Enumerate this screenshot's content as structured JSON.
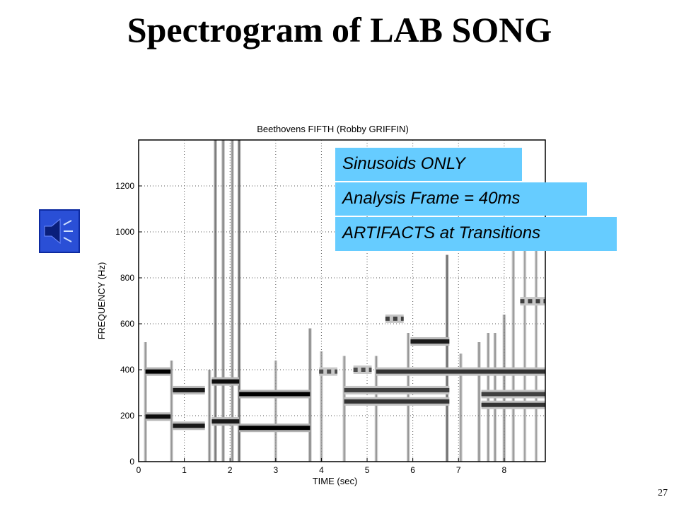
{
  "slide": {
    "title": "Spectrogram of LAB SONG",
    "page_number": "27"
  },
  "callouts": [
    "Sinusoids ONLY",
    "Analysis Frame = 40ms",
    "ARTIFACTS at Transitions"
  ],
  "speaker_icon": "speaker-icon",
  "chart_data": {
    "type": "heatmap",
    "title": "Beethovens FIFTH    (Robby GRIFFIN)",
    "xlabel": "TIME (sec)",
    "ylabel": "FREQUENCY (Hz)",
    "xlim": [
      0,
      8.9
    ],
    "ylim": [
      0,
      1400
    ],
    "xticks": [
      0,
      1,
      2,
      3,
      4,
      5,
      6,
      7,
      8
    ],
    "yticks": [
      0,
      200,
      400,
      600,
      800,
      1000,
      1200
    ],
    "grid": true,
    "colormap": "gray-inverted",
    "tracks": [
      {
        "t0": 0.15,
        "t1": 0.7,
        "freq": 392,
        "level": 1.0
      },
      {
        "t0": 0.15,
        "t1": 0.7,
        "freq": 196,
        "level": 0.95
      },
      {
        "t0": 0.75,
        "t1": 1.45,
        "freq": 311,
        "level": 0.9
      },
      {
        "t0": 0.75,
        "t1": 1.45,
        "freq": 156,
        "level": 0.9
      },
      {
        "t0": 1.6,
        "t1": 2.2,
        "freq": 349,
        "level": 0.95
      },
      {
        "t0": 1.6,
        "t1": 2.2,
        "freq": 175,
        "level": 0.9
      },
      {
        "t0": 2.2,
        "t1": 3.75,
        "freq": 294,
        "level": 1.0
      },
      {
        "t0": 2.2,
        "t1": 3.75,
        "freq": 147,
        "level": 1.0
      },
      {
        "t0": 3.95,
        "t1": 4.35,
        "freq": 392,
        "level": 0.7,
        "dashed": true
      },
      {
        "t0": 4.7,
        "t1": 5.1,
        "freq": 400,
        "level": 0.7,
        "dashed": true
      },
      {
        "t0": 4.5,
        "t1": 6.8,
        "freq": 311,
        "level": 0.75
      },
      {
        "t0": 4.5,
        "t1": 6.8,
        "freq": 262,
        "level": 0.8
      },
      {
        "t0": 5.2,
        "t1": 8.9,
        "freq": 392,
        "level": 0.8
      },
      {
        "t0": 5.4,
        "t1": 5.8,
        "freq": 622,
        "level": 0.75,
        "dashed": true
      },
      {
        "t0": 5.95,
        "t1": 6.8,
        "freq": 523,
        "level": 0.9
      },
      {
        "t0": 7.5,
        "t1": 8.9,
        "freq": 294,
        "level": 0.75
      },
      {
        "t0": 7.5,
        "t1": 8.9,
        "freq": 247,
        "level": 0.8
      },
      {
        "t0": 8.35,
        "t1": 8.9,
        "freq": 698,
        "level": 0.75,
        "dashed": true
      }
    ],
    "transitions": [
      {
        "t": 0.15,
        "fmax": 520,
        "level": 0.35
      },
      {
        "t": 0.72,
        "fmax": 440,
        "level": 0.35
      },
      {
        "t": 1.55,
        "fmax": 400,
        "level": 0.4
      },
      {
        "t": 1.68,
        "fmax": 1400,
        "level": 0.5
      },
      {
        "t": 1.85,
        "fmax": 1400,
        "level": 0.45
      },
      {
        "t": 2.05,
        "fmax": 1400,
        "level": 0.4
      },
      {
        "t": 2.2,
        "fmax": 1400,
        "level": 0.55
      },
      {
        "t": 3.0,
        "fmax": 440,
        "level": 0.3
      },
      {
        "t": 3.75,
        "fmax": 580,
        "level": 0.45
      },
      {
        "t": 4.0,
        "fmax": 480,
        "level": 0.3
      },
      {
        "t": 4.5,
        "fmax": 460,
        "level": 0.35
      },
      {
        "t": 5.2,
        "fmax": 460,
        "level": 0.35
      },
      {
        "t": 5.9,
        "fmax": 560,
        "level": 0.35
      },
      {
        "t": 6.75,
        "fmax": 900,
        "level": 0.55
      },
      {
        "t": 7.05,
        "fmax": 470,
        "level": 0.35
      },
      {
        "t": 7.45,
        "fmax": 520,
        "level": 0.4
      },
      {
        "t": 7.65,
        "fmax": 560,
        "level": 0.35
      },
      {
        "t": 7.8,
        "fmax": 560,
        "level": 0.35
      },
      {
        "t": 8.0,
        "fmax": 640,
        "level": 0.4
      },
      {
        "t": 8.2,
        "fmax": 1000,
        "level": 0.35
      },
      {
        "t": 8.45,
        "fmax": 1000,
        "level": 0.3
      },
      {
        "t": 8.7,
        "fmax": 1000,
        "level": 0.3
      }
    ]
  }
}
